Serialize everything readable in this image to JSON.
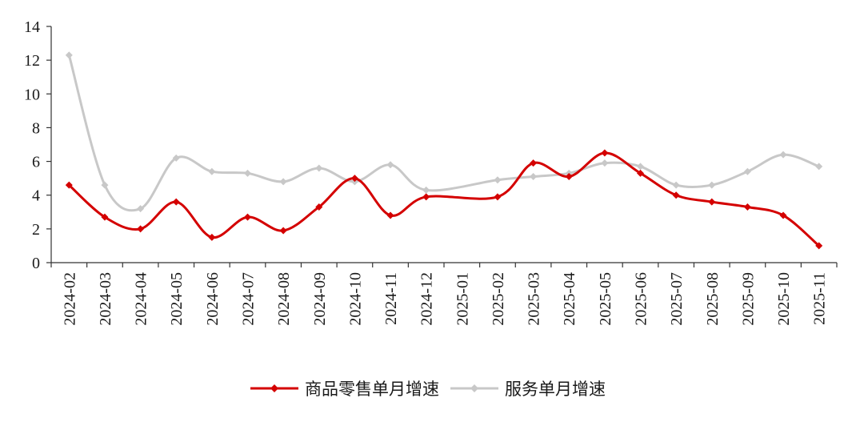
{
  "chart_data": {
    "type": "line",
    "categories": [
      "2024-02",
      "2024-03",
      "2024-04",
      "2024-05",
      "2024-06",
      "2024-07",
      "2024-08",
      "2024-09",
      "2024-10",
      "2024-11",
      "2024-12",
      "2025-01",
      "2025-02",
      "2025-03",
      "2025-04",
      "2025-05",
      "2025-06",
      "2025-07",
      "2025-08",
      "2025-09",
      "2025-10",
      "2025-11"
    ],
    "series": [
      {
        "name": "商品零售单月增速",
        "color": "#d40000",
        "marker": "diamond",
        "values": [
          4.6,
          2.7,
          2.0,
          3.6,
          1.5,
          2.7,
          1.9,
          3.3,
          5.0,
          2.8,
          3.9,
          null,
          3.9,
          5.9,
          5.1,
          6.5,
          5.3,
          4.0,
          3.6,
          3.3,
          2.8,
          1.0
        ]
      },
      {
        "name": "服务单月增速",
        "color": "#c8c8c8",
        "marker": "diamond",
        "values": [
          12.3,
          4.6,
          3.2,
          6.2,
          5.4,
          5.3,
          4.8,
          5.6,
          4.8,
          5.8,
          4.3,
          null,
          4.9,
          5.1,
          5.3,
          5.9,
          5.7,
          4.6,
          4.6,
          5.4,
          6.4,
          5.7
        ]
      }
    ],
    "yticks": [
      0,
      2,
      4,
      6,
      8,
      10,
      12,
      14
    ],
    "ylim": [
      0,
      14
    ],
    "grid": false,
    "legend": "bottom-center",
    "title": "",
    "xlabel": "",
    "ylabel": ""
  }
}
